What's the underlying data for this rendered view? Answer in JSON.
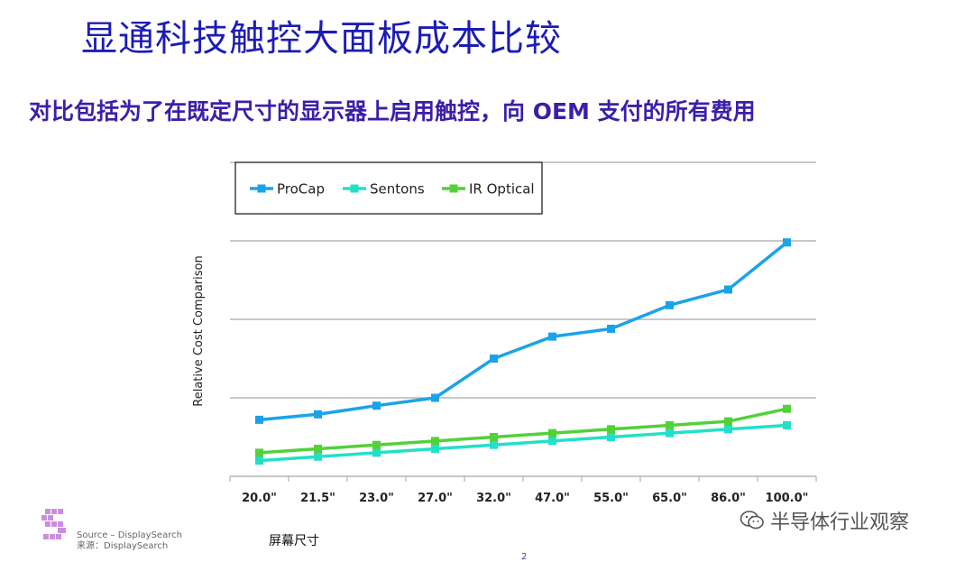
{
  "header": {
    "title": "显通科技触控大面板成本比较",
    "subtitle": "对比包括为了在既定尺寸的显示器上启用触控，向 OEM 支付的所有费用"
  },
  "footer": {
    "source_en": "Source – DisplaySearch",
    "source_cn": "来源：DisplaySearch",
    "page_number": "2",
    "watermark": "半导体行业观察",
    "logo_letter": "S"
  },
  "chart_data": {
    "type": "line",
    "title": "",
    "xlabel": "屏幕尺寸",
    "ylabel": "Relative Cost Comparison",
    "categories": [
      "20.0\"",
      "21.5\"",
      "23.0\"",
      "27.0\"",
      "32.0\"",
      "47.0\"",
      "55.0\"",
      "65.0\"",
      "86.0\"",
      "100.0\""
    ],
    "ylim": [
      0,
      3
    ],
    "yticks": [
      0,
      1,
      2,
      3
    ],
    "ytick_labels_shown": false,
    "grid": "horizontal",
    "legend_position": "top-left",
    "series": [
      {
        "name": "ProCap",
        "color": "#1aa3e8",
        "values": [
          0.72,
          0.79,
          0.9,
          1.0,
          1.5,
          1.78,
          1.88,
          2.18,
          2.38,
          2.98
        ]
      },
      {
        "name": "Sentons",
        "color": "#22e0c8",
        "values": [
          0.2,
          0.25,
          0.3,
          0.35,
          0.4,
          0.45,
          0.5,
          0.55,
          0.6,
          0.65
        ]
      },
      {
        "name": "IR Optical",
        "color": "#52d13a",
        "values": [
          0.3,
          0.35,
          0.4,
          0.45,
          0.5,
          0.55,
          0.6,
          0.65,
          0.7,
          0.86
        ]
      }
    ]
  }
}
